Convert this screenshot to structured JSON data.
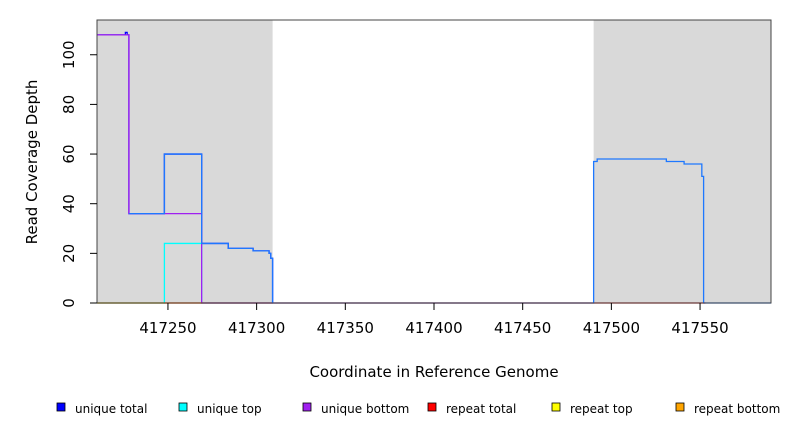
{
  "chart_data": {
    "type": "line",
    "title": "",
    "xlabel": "Coordinate in Reference Genome",
    "ylabel": "Read Coverage Depth",
    "xlim": [
      417210,
      417590
    ],
    "ylim": [
      0,
      114
    ],
    "x_ticks": [
      417250,
      417300,
      417350,
      417400,
      417450,
      417500,
      417550
    ],
    "y_ticks": [
      0,
      20,
      40,
      60,
      80,
      100
    ],
    "grid": false,
    "shaded_regions": [
      {
        "x0": 417210,
        "x1": 417309,
        "color": "#d9d9d9"
      },
      {
        "x0": 417490,
        "x1": 417590,
        "color": "#d9d9d9"
      }
    ],
    "legend_position": "bottom",
    "series": [
      {
        "name": "unique total",
        "color": "#0000ff",
        "points": [
          [
            417210,
            108
          ],
          [
            417226,
            108
          ],
          [
            417226,
            109
          ],
          [
            417227,
            109
          ],
          [
            417227,
            108
          ],
          [
            417228,
            108
          ],
          [
            417228,
            36
          ],
          [
            417248,
            36
          ],
          [
            417248,
            60
          ],
          [
            417269,
            60
          ],
          [
            417269,
            24
          ],
          [
            417284,
            24
          ],
          [
            417284,
            22
          ],
          [
            417298,
            22
          ],
          [
            417298,
            21
          ],
          [
            417307,
            21
          ],
          [
            417307,
            20
          ],
          [
            417308,
            20
          ],
          [
            417308,
            18
          ],
          [
            417309,
            18
          ],
          [
            417309,
            0
          ]
        ]
      },
      {
        "name": "unique top",
        "color": "#00ffff",
        "points": [
          [
            417210,
            0
          ],
          [
            417248,
            0
          ],
          [
            417248,
            24
          ],
          [
            417269,
            24
          ],
          [
            417269,
            0
          ],
          [
            417309,
            0
          ]
        ]
      },
      {
        "name": "unique bottom",
        "color": "#a020f0",
        "points": [
          [
            417210,
            108
          ],
          [
            417228,
            108
          ],
          [
            417228,
            36
          ],
          [
            417269,
            36
          ],
          [
            417269,
            0
          ],
          [
            417309,
            0
          ]
        ]
      },
      {
        "name": "repeat total",
        "color": "#ff0000",
        "points": [
          [
            417210,
            0
          ],
          [
            417309,
            0
          ],
          [
            417490,
            0
          ],
          [
            417553,
            0
          ]
        ]
      },
      {
        "name": "repeat top",
        "color": "#ffff00",
        "points": [
          [
            417210,
            0
          ],
          [
            417248,
            0
          ]
        ]
      },
      {
        "name": "repeat bottom",
        "color": "#ffa500",
        "points": [
          [
            417248,
            0
          ],
          [
            417269,
            0
          ]
        ]
      },
      {
        "name": "coverage",
        "color": "#1e78ff",
        "show_in_legend": false,
        "points": [
          [
            417228,
            36
          ],
          [
            417248,
            36
          ],
          [
            417248,
            60
          ],
          [
            417269,
            60
          ],
          [
            417269,
            24
          ],
          [
            417284,
            24
          ],
          [
            417284,
            22
          ],
          [
            417298,
            22
          ],
          [
            417298,
            21
          ],
          [
            417307,
            21
          ],
          [
            417307,
            20
          ],
          [
            417308,
            20
          ],
          [
            417308,
            18
          ],
          [
            417309,
            18
          ],
          [
            417309,
            0
          ],
          [
            417490,
            0
          ],
          [
            417490,
            57
          ],
          [
            417492,
            57
          ],
          [
            417492,
            58
          ],
          [
            417531,
            58
          ],
          [
            417531,
            57
          ],
          [
            417541,
            57
          ],
          [
            417541,
            56
          ],
          [
            417551,
            56
          ],
          [
            417551,
            51
          ],
          [
            417552,
            51
          ],
          [
            417552,
            0
          ],
          [
            417590,
            0
          ]
        ]
      }
    ]
  }
}
